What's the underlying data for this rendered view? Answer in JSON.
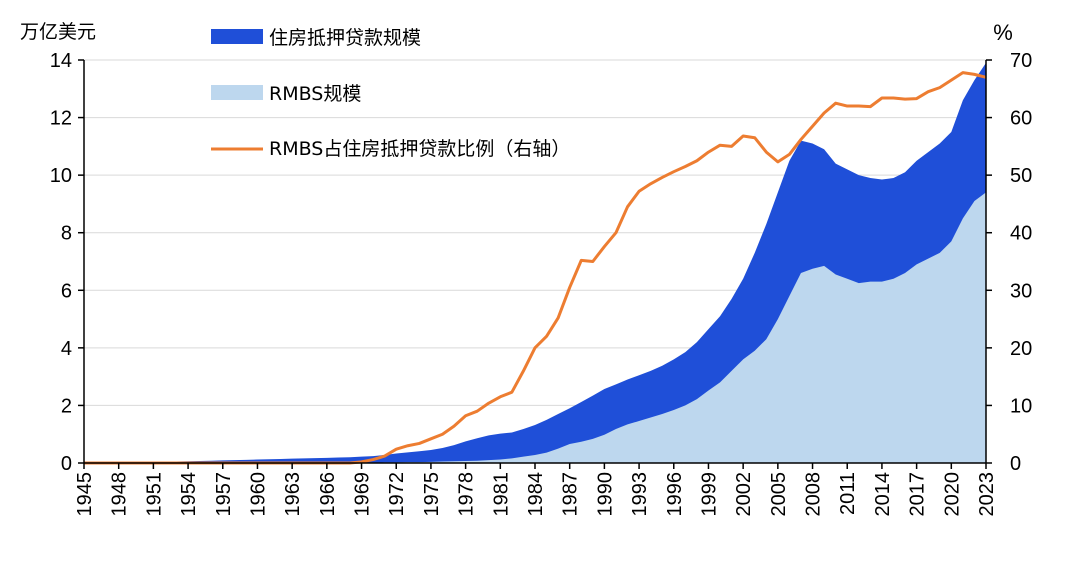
{
  "chart_data": {
    "type": "area",
    "title": "",
    "y_left_unit": "万亿美元",
    "y_right_unit": "%",
    "ylim_left": [
      0,
      14
    ],
    "ylim_right": [
      0,
      70
    ],
    "y_left_ticks": [
      0,
      2,
      4,
      6,
      8,
      10,
      12,
      14
    ],
    "y_right_ticks": [
      0,
      10,
      20,
      30,
      40,
      50,
      60,
      70
    ],
    "x_tick_labels": [
      "1945",
      "1948",
      "1951",
      "1954",
      "1957",
      "1960",
      "1963",
      "1966",
      "1969",
      "1972",
      "1975",
      "1978",
      "1981",
      "1984",
      "1987",
      "1990",
      "1993",
      "1996",
      "1999",
      "2002",
      "2005",
      "2008",
      "2011",
      "2014",
      "2017",
      "2020",
      "2023"
    ],
    "x": [
      1945,
      1946,
      1947,
      1948,
      1949,
      1950,
      1951,
      1952,
      1953,
      1954,
      1955,
      1956,
      1957,
      1958,
      1959,
      1960,
      1961,
      1962,
      1963,
      1964,
      1965,
      1966,
      1967,
      1968,
      1969,
      1970,
      1971,
      1972,
      1973,
      1974,
      1975,
      1976,
      1977,
      1978,
      1979,
      1980,
      1981,
      1982,
      1983,
      1984,
      1985,
      1986,
      1987,
      1988,
      1989,
      1990,
      1991,
      1992,
      1993,
      1994,
      1995,
      1996,
      1997,
      1998,
      1999,
      2000,
      2001,
      2002,
      2003,
      2004,
      2005,
      2006,
      2007,
      2008,
      2009,
      2010,
      2011,
      2012,
      2013,
      2014,
      2015,
      2016,
      2017,
      2018,
      2019,
      2020,
      2021,
      2022,
      2023
    ],
    "series": [
      {
        "name": "住房抵押贷款规模",
        "type": "area",
        "axis": "left",
        "color": "#1f4fd8",
        "values": [
          0.02,
          0.02,
          0.03,
          0.03,
          0.03,
          0.04,
          0.04,
          0.05,
          0.05,
          0.06,
          0.07,
          0.08,
          0.09,
          0.1,
          0.11,
          0.12,
          0.13,
          0.14,
          0.15,
          0.16,
          0.17,
          0.18,
          0.19,
          0.2,
          0.22,
          0.24,
          0.28,
          0.33,
          0.37,
          0.41,
          0.45,
          0.52,
          0.62,
          0.75,
          0.86,
          0.96,
          1.02,
          1.06,
          1.18,
          1.32,
          1.5,
          1.7,
          1.9,
          2.12,
          2.34,
          2.57,
          2.73,
          2.9,
          3.05,
          3.2,
          3.38,
          3.6,
          3.85,
          4.2,
          4.65,
          5.1,
          5.7,
          6.4,
          7.3,
          8.3,
          9.4,
          10.5,
          11.2,
          11.1,
          10.9,
          10.4,
          10.2,
          10.0,
          9.9,
          9.85,
          9.9,
          10.1,
          10.5,
          10.8,
          11.1,
          11.5,
          12.6,
          13.3,
          13.9
        ]
      },
      {
        "name": "RMBS规模",
        "type": "area",
        "axis": "left",
        "color": "#bdd7ee",
        "values": [
          0,
          0,
          0,
          0,
          0,
          0,
          0,
          0,
          0,
          0,
          0,
          0,
          0,
          0,
          0,
          0,
          0,
          0,
          0,
          0,
          0,
          0,
          0,
          0,
          0,
          0.01,
          0.02,
          0.02,
          0.03,
          0.03,
          0.04,
          0.05,
          0.06,
          0.07,
          0.08,
          0.1,
          0.12,
          0.16,
          0.22,
          0.28,
          0.36,
          0.5,
          0.66,
          0.74,
          0.84,
          0.98,
          1.18,
          1.34,
          1.46,
          1.58,
          1.7,
          1.84,
          2.0,
          2.22,
          2.52,
          2.8,
          3.2,
          3.6,
          3.9,
          4.3,
          5.0,
          5.8,
          6.6,
          6.75,
          6.85,
          6.55,
          6.4,
          6.25,
          6.3,
          6.3,
          6.4,
          6.6,
          6.9,
          7.1,
          7.3,
          7.7,
          8.5,
          9.1,
          9.4
        ]
      },
      {
        "name": "RMBS占住房抵押贷款比例（右轴）",
        "type": "line",
        "axis": "right",
        "color": "#ed7d31",
        "values": [
          0,
          0,
          0,
          0,
          0,
          0,
          0,
          0,
          0,
          0,
          0,
          0,
          0,
          0,
          0,
          0,
          0,
          0,
          0,
          0,
          0,
          0,
          0,
          0,
          0.2,
          0.6,
          1.2,
          2.4,
          3.0,
          3.4,
          4.2,
          5.0,
          6.4,
          8.2,
          9.0,
          10.4,
          11.5,
          12.3,
          16.0,
          20.0,
          22.0,
          25.2,
          30.5,
          35.2,
          35.0,
          37.6,
          40.0,
          44.5,
          47.2,
          48.5,
          49.6,
          50.6,
          51.5,
          52.5,
          54.0,
          55.2,
          55.0,
          56.8,
          56.5,
          54.0,
          52.3,
          53.6,
          56.2,
          58.5,
          60.8,
          62.5,
          62.0,
          62.0,
          61.9,
          63.4,
          63.4,
          63.2,
          63.3,
          64.5,
          65.2,
          66.5,
          67.8,
          67.5,
          67.0
        ]
      }
    ],
    "legend_placement": "top-left",
    "grid": "horizontal"
  }
}
